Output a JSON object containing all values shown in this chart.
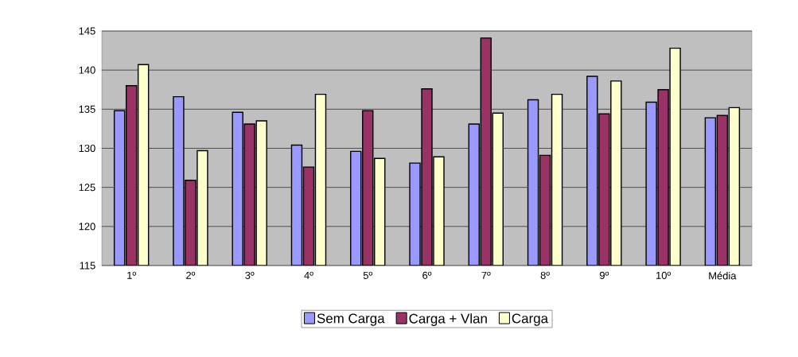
{
  "chart_data": {
    "type": "bar",
    "categories": [
      "1º",
      "2º",
      "3º",
      "4º",
      "5º",
      "6º",
      "7º",
      "8º",
      "9º",
      "10º",
      "Média"
    ],
    "series": [
      {
        "name": "Sem Carga",
        "color": "#9999ff",
        "values": [
          134.8,
          136.6,
          134.6,
          130.4,
          129.6,
          128.1,
          133.1,
          136.2,
          139.2,
          135.9,
          133.9
        ]
      },
      {
        "name": "Carga + Vlan",
        "color": "#993366",
        "values": [
          138.0,
          125.9,
          133.1,
          127.6,
          134.8,
          137.6,
          144.1,
          129.1,
          134.4,
          137.5,
          134.2
        ]
      },
      {
        "name": "Carga",
        "color": "#ffffcc",
        "values": [
          140.7,
          129.7,
          133.5,
          136.9,
          128.7,
          128.9,
          134.5,
          136.9,
          138.6,
          142.8,
          135.2
        ]
      }
    ],
    "ylim": [
      115,
      145
    ],
    "yticks": [
      115,
      120,
      125,
      130,
      135,
      140,
      145
    ],
    "grid": "y",
    "legend": "bottom"
  }
}
